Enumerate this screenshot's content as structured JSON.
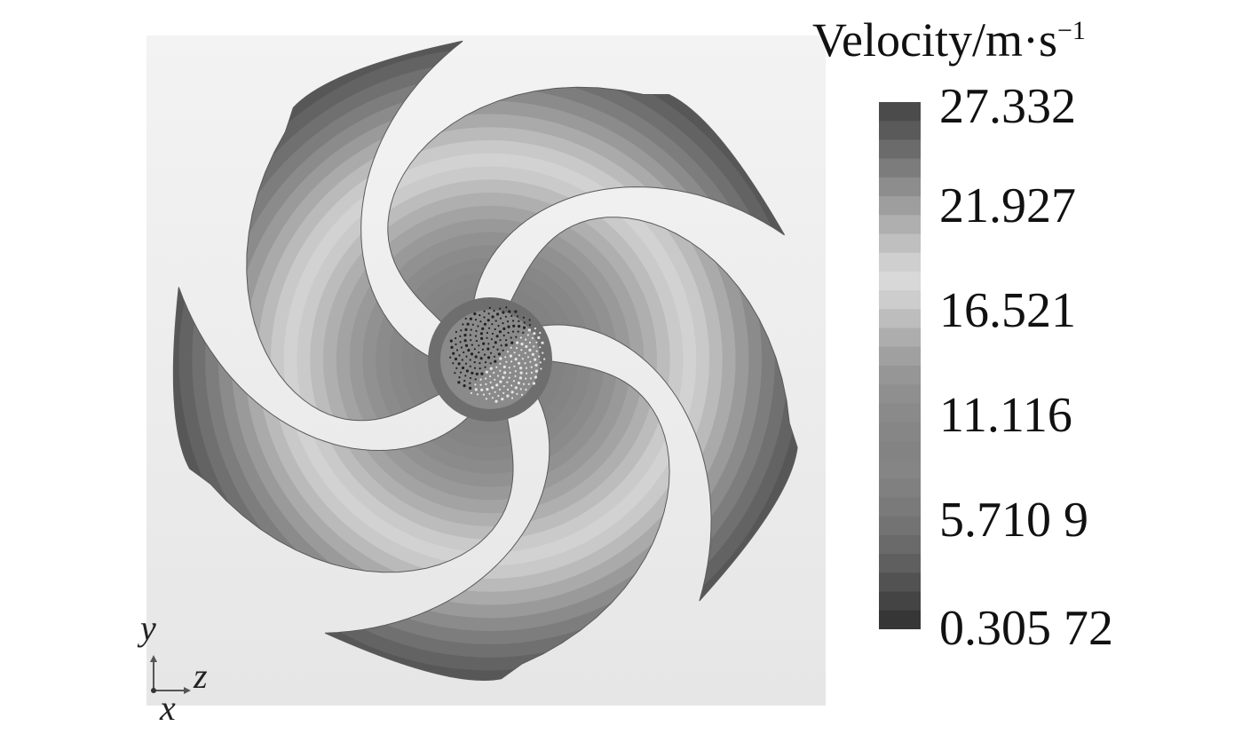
{
  "colorbar": {
    "title": "Velocity/m·s",
    "title_exponent": "−1",
    "ticks": [
      "27.332",
      "21.927",
      "16.521",
      "11.116",
      "5.710 9",
      "0.305 72"
    ],
    "range": [
      0.30572,
      27.332
    ],
    "palette": "grayscale",
    "levels": 28
  },
  "triad": {
    "y_label": "y",
    "z_label": "z",
    "x_label": "x"
  },
  "scene": {
    "object": "impeller",
    "blade_count": 5,
    "view": "axial"
  }
}
